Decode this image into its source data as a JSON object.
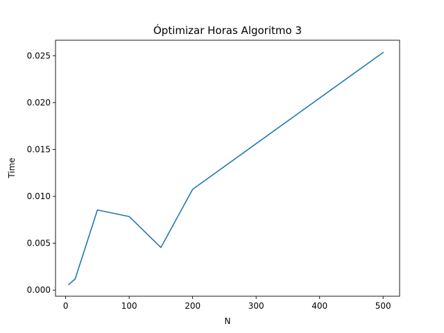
{
  "chart_data": {
    "type": "line",
    "title": "Óptimizar Horas Algoritmo 3",
    "xlabel": "N",
    "ylabel": "Time",
    "xlim": [
      -16,
      526
    ],
    "ylim": [
      -0.00065,
      0.02665
    ],
    "x_ticks": [
      0,
      100,
      200,
      300,
      400,
      500
    ],
    "x_tick_labels": [
      "0",
      "100",
      "200",
      "300",
      "400",
      "500"
    ],
    "y_ticks": [
      0,
      0.005,
      0.01,
      0.015,
      0.02,
      0.025
    ],
    "y_tick_labels": [
      "0.000",
      "0.005",
      "0.010",
      "0.015",
      "0.020",
      "0.025"
    ],
    "grid": false,
    "series": [
      {
        "color": "#1f77b4",
        "x": [
          5,
          15,
          50,
          100,
          150,
          200,
          500
        ],
        "y": [
          0.0006,
          0.0012,
          0.00855,
          0.00785,
          0.00455,
          0.01075,
          0.02535
        ]
      }
    ]
  }
}
